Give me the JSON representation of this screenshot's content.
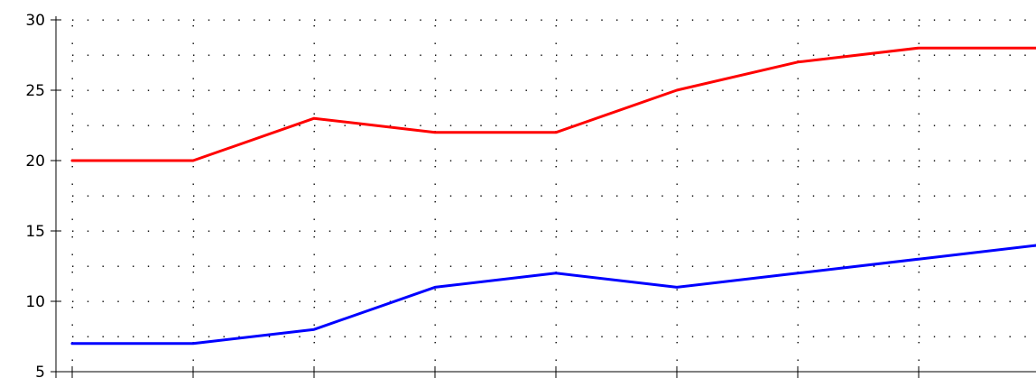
{
  "chart_data": {
    "type": "line",
    "x": [
      1,
      2,
      3,
      4,
      5,
      6,
      7,
      8,
      9
    ],
    "series": [
      {
        "values": [
          20,
          20,
          23,
          22,
          22,
          25,
          27,
          28,
          28
        ],
        "color": "#ff0000"
      },
      {
        "values": [
          7,
          7,
          8,
          11,
          12,
          11,
          12,
          13,
          14
        ],
        "color": "#0000ff"
      }
    ],
    "ylim": [
      5,
      30
    ],
    "yticks": [
      5,
      10,
      15,
      20,
      25,
      30
    ],
    "ytick_labels": [
      "5",
      "10",
      "15",
      "20",
      "25",
      "30"
    ],
    "grid": "dotted",
    "legend": "none"
  }
}
